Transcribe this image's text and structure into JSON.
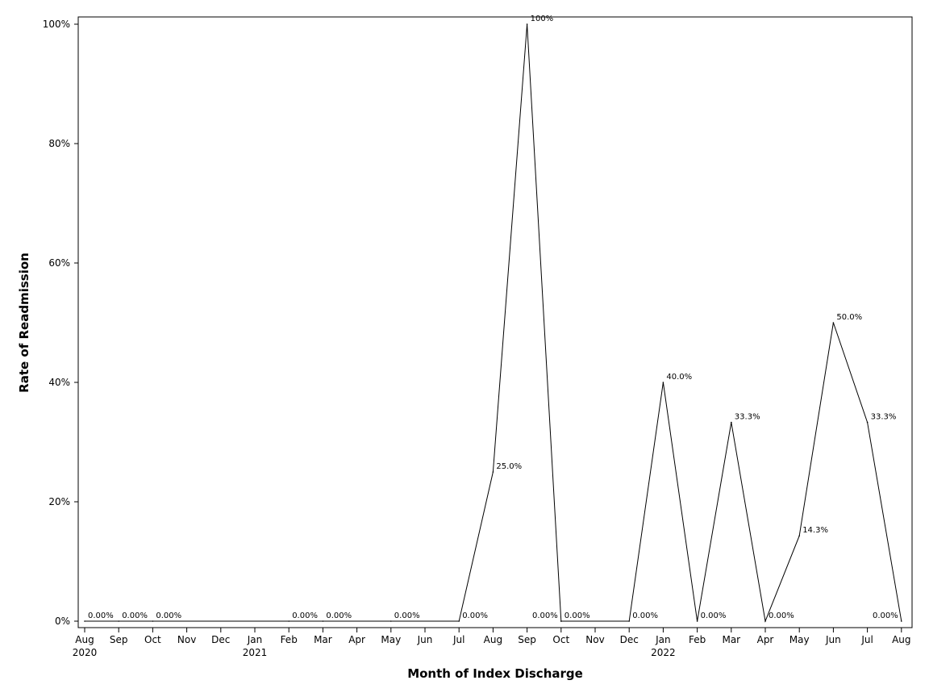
{
  "chart_data": {
    "type": "line",
    "title": "",
    "xlabel": "Month of Index Discharge",
    "ylabel": "Rate of Readmission",
    "ylim": [
      0,
      100
    ],
    "y_unit": "%",
    "yticks": [
      "0%",
      "20%",
      "40%",
      "60%",
      "80%",
      "100%"
    ],
    "ytick_values": [
      0,
      20,
      40,
      60,
      80,
      100
    ],
    "x_months": [
      "2020-08",
      "2020-09",
      "2020-10",
      "2020-11",
      "2020-12",
      "2021-01",
      "2021-02",
      "2021-03",
      "2021-04",
      "2021-05",
      "2021-06",
      "2021-07",
      "2021-08",
      "2021-09",
      "2021-10",
      "2021-11",
      "2021-12",
      "2022-01",
      "2022-02",
      "2022-03",
      "2022-04",
      "2022-05",
      "2022-06",
      "2022-07",
      "2022-08"
    ],
    "x_tick_labels": [
      "Aug",
      "Sep",
      "Oct",
      "Nov",
      "Dec",
      "Jan",
      "Feb",
      "Mar",
      "Apr",
      "May",
      "Jun",
      "Jul",
      "Aug",
      "Sep",
      "Oct",
      "Nov",
      "Dec",
      "Jan",
      "Feb",
      "Mar",
      "Apr",
      "May",
      "Jun",
      "Jul",
      "Aug"
    ],
    "x_year_labels": [
      {
        "month": "2020-08",
        "label": "2020"
      },
      {
        "month": "2021-01",
        "label": "2021"
      },
      {
        "month": "2022-01",
        "label": "2022"
      }
    ],
    "series": [
      {
        "points": [
          {
            "x": "2020-08",
            "y": 0,
            "label": "0.00%"
          },
          {
            "x": "2020-09",
            "y": 0,
            "label": "0.00%"
          },
          {
            "x": "2020-10",
            "y": 0,
            "label": "0.00%"
          },
          {
            "x": "2021-02",
            "y": 0,
            "label": "0.00%"
          },
          {
            "x": "2021-03",
            "y": 0,
            "label": "0.00%"
          },
          {
            "x": "2021-05",
            "y": 0,
            "label": "0.00%"
          },
          {
            "x": "2021-07",
            "y": 0,
            "label": "0.00%"
          },
          {
            "x": "2021-08",
            "y": 25.0,
            "label": "25.0%"
          },
          {
            "x": "2021-09",
            "y": 100,
            "label": "100%"
          },
          {
            "x": "2021-10",
            "y": 0,
            "label": "0.00%"
          },
          {
            "x": "2021-10",
            "y": 0,
            "label": "0.00%"
          },
          {
            "x": "2021-12",
            "y": 0,
            "label": "0.00%"
          },
          {
            "x": "2022-01",
            "y": 40.0,
            "label": "40.0%"
          },
          {
            "x": "2022-02",
            "y": 0,
            "label": "0.00%"
          },
          {
            "x": "2022-03",
            "y": 33.3,
            "label": "33.3%"
          },
          {
            "x": "2022-04",
            "y": 0,
            "label": "0.00%"
          },
          {
            "x": "2022-05",
            "y": 14.3,
            "label": "14.3%"
          },
          {
            "x": "2022-06",
            "y": 50.0,
            "label": "50.0%"
          },
          {
            "x": "2022-07",
            "y": 33.3,
            "label": "33.3%"
          },
          {
            "x": "2022-08",
            "y": 0,
            "label": "0.00%"
          }
        ]
      }
    ],
    "grid": false,
    "legend": "none"
  }
}
